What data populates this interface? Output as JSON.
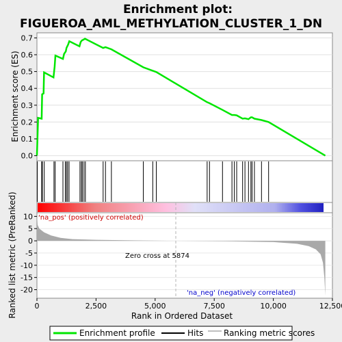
{
  "chart_data": {
    "type": "line",
    "title_line1": "Enrichment plot:",
    "title_line2": "FIGUEROA_AML_METHYLATION_CLUSTER_1_DN",
    "ylabel_top": "Enrichment score (ES)",
    "ylabel_bottom": "Ranked list metric (PreRanked)",
    "xlabel": "Rank in Ordered Dataset",
    "xlim": [
      0,
      12500
    ],
    "ylim_top": [
      -0.03,
      0.73
    ],
    "ylim_bottom": [
      -23.5,
      11.5
    ],
    "x_ticks": [
      0,
      2500,
      5000,
      7500,
      10000,
      12500
    ],
    "x_tick_labels": [
      "0",
      "2,500",
      "5,000",
      "7,500",
      "10,000",
      "12,500"
    ],
    "y_ticks_top": [
      0.0,
      0.1,
      0.2,
      0.3,
      0.4,
      0.5,
      0.6,
      0.7
    ],
    "y_tick_labels_top": [
      "0.0",
      "0.1",
      "0.2",
      "0.3",
      "0.4",
      "0.5",
      "0.6",
      "0.7"
    ],
    "y_ticks_bottom": [
      10,
      5,
      0,
      -5,
      -10,
      -15,
      -20
    ],
    "y_tick_labels_bottom": [
      "10",
      "5",
      "0",
      "-5",
      "-10",
      "-15",
      "-20"
    ],
    "annotations": {
      "zero_cross": "Zero cross at 5874",
      "na_pos": "'na_pos' (positively correlated)",
      "na_neg": "'na_neg' (negatively correlated)"
    },
    "zero_cross_rank": 5874,
    "total_rank": 12200,
    "es_profile": [
      [
        0,
        0.0
      ],
      [
        50,
        0.225
      ],
      [
        200,
        0.22
      ],
      [
        220,
        0.365
      ],
      [
        280,
        0.37
      ],
      [
        300,
        0.495
      ],
      [
        700,
        0.465
      ],
      [
        750,
        0.53
      ],
      [
        780,
        0.595
      ],
      [
        1100,
        0.575
      ],
      [
        1150,
        0.605
      ],
      [
        1220,
        0.62
      ],
      [
        1250,
        0.64
      ],
      [
        1320,
        0.66
      ],
      [
        1370,
        0.68
      ],
      [
        1800,
        0.65
      ],
      [
        1850,
        0.675
      ],
      [
        1900,
        0.685
      ],
      [
        1980,
        0.69
      ],
      [
        2030,
        0.695
      ],
      [
        2800,
        0.64
      ],
      [
        2900,
        0.645
      ],
      [
        3150,
        0.632
      ],
      [
        4500,
        0.525
      ],
      [
        4900,
        0.505
      ],
      [
        5050,
        0.497
      ],
      [
        7200,
        0.318
      ],
      [
        7300,
        0.312
      ],
      [
        7850,
        0.272
      ],
      [
        8250,
        0.242
      ],
      [
        8350,
        0.242
      ],
      [
        8450,
        0.24
      ],
      [
        8700,
        0.22
      ],
      [
        8800,
        0.222
      ],
      [
        8950,
        0.217
      ],
      [
        9050,
        0.228
      ],
      [
        9100,
        0.228
      ],
      [
        9200,
        0.22
      ],
      [
        9500,
        0.212
      ],
      [
        9800,
        0.2
      ],
      [
        12200,
        0.0
      ]
    ],
    "hits": [
      15,
      200,
      230,
      310,
      720,
      770,
      1100,
      1200,
      1250,
      1300,
      1360,
      1820,
      1880,
      1920,
      1990,
      2050,
      2800,
      2900,
      3150,
      4500,
      4900,
      5050,
      7200,
      7300,
      7850,
      8250,
      8350,
      8450,
      8700,
      8800,
      8950,
      9050,
      9100,
      9200,
      9500,
      9800
    ],
    "ranked_metric": [
      [
        0,
        11.2
      ],
      [
        30,
        6.5
      ],
      [
        100,
        5.0
      ],
      [
        300,
        3.5
      ],
      [
        600,
        2.2
      ],
      [
        1000,
        1.2
      ],
      [
        1500,
        0.7
      ],
      [
        2500,
        0.4
      ],
      [
        4000,
        0.2
      ],
      [
        5874,
        0.0
      ],
      [
        8000,
        -0.2
      ],
      [
        10000,
        -0.5
      ],
      [
        11000,
        -1.2
      ],
      [
        11500,
        -2.2
      ],
      [
        11800,
        -3.5
      ],
      [
        12000,
        -5.5
      ],
      [
        12100,
        -9.0
      ],
      [
        12160,
        -15.0
      ],
      [
        12200,
        -22.5
      ]
    ],
    "legend": [
      "Enrichment profile",
      "Hits",
      "Ranking metric scores"
    ],
    "legend_placement": "bottom",
    "colors": {
      "enrichment_line": "#00e600",
      "hit_line": "#000000",
      "metric_fill": "#a9a9a9",
      "background": "#ededed",
      "panel": "#ffffff",
      "na_pos_text": "#cc0000",
      "na_neg_text": "#0000cc",
      "zero_cross_line": "#b3b3b3"
    }
  }
}
